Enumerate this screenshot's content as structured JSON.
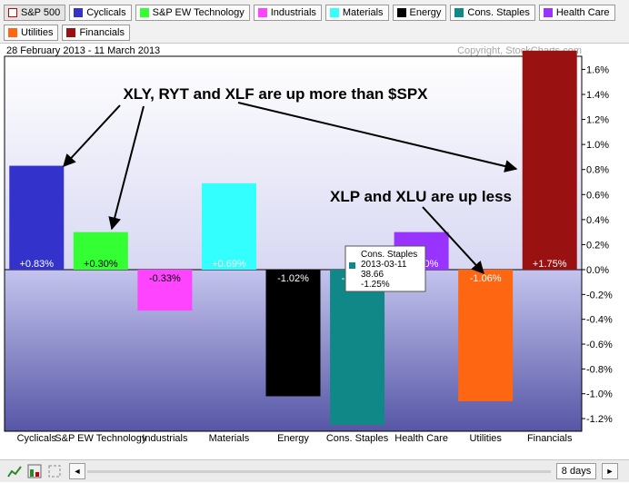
{
  "legend": [
    {
      "label": "S&P 500",
      "color": "#cc0000",
      "hollow": true
    },
    {
      "label": "Cyclicals",
      "color": "#3333cc"
    },
    {
      "label": "S&P EW Technology",
      "color": "#33ff33"
    },
    {
      "label": "Industrials",
      "color": "#ff44ff"
    },
    {
      "label": "Materials",
      "color": "#33ffff"
    },
    {
      "label": "Energy",
      "color": "#000000"
    },
    {
      "label": "Cons. Staples",
      "color": "#118888"
    },
    {
      "label": "Health Care",
      "color": "#9933ff"
    },
    {
      "label": "Utilities",
      "color": "#ff6611"
    },
    {
      "label": "Financials",
      "color": "#991111"
    }
  ],
  "header": {
    "date_range": "28 February 2013 - 11 March 2013",
    "copyright": "Copyright, StockCharts.com"
  },
  "chart_data": {
    "type": "bar",
    "categories": [
      "Cyclicals",
      "S&P EW Technology",
      "Industrials",
      "Materials",
      "Energy",
      "Cons. Staples",
      "Health Care",
      "Utilities",
      "Financials"
    ],
    "values": [
      0.83,
      0.3,
      -0.33,
      0.69,
      -1.02,
      -1.25,
      0.3,
      -1.06,
      1.75
    ],
    "value_labels": [
      "+0.83%",
      "+0.30%",
      "-0.33%",
      "+0.69%",
      "-1.02%",
      "-1.25%",
      "+0.30%",
      "-1.06%",
      "+1.75%"
    ],
    "colors": [
      "#3333cc",
      "#33ff33",
      "#ff44ff",
      "#33ffff",
      "#000000",
      "#118888",
      "#9933ff",
      "#ff6611",
      "#991111"
    ],
    "ylim": [
      -1.3,
      1.7
    ],
    "yticks": [
      -1.2,
      -1.0,
      -0.8,
      -0.6,
      -0.4,
      -0.2,
      0.0,
      0.2,
      0.4,
      0.6,
      0.8,
      1.0,
      1.2,
      1.4,
      1.6
    ],
    "ytick_labels": [
      "-1.2%",
      "-1.0%",
      "-0.8%",
      "-0.6%",
      "-0.4%",
      "-0.2%",
      "0.0%",
      "0.2%",
      "0.4%",
      "0.6%",
      "0.8%",
      "1.0%",
      "1.2%",
      "1.4%",
      "1.6%"
    ],
    "grid": false,
    "annotations": [
      {
        "text": "XLY, RYT and XLF are up more than $SPX"
      },
      {
        "text": "XLP and XLU are up less"
      }
    ],
    "tooltip": {
      "series": "Cons. Staples",
      "lines": [
        "Cons. Staples",
        "2013-03-11",
        "38.66",
        "-1.25%"
      ],
      "color": "#118888"
    }
  },
  "footer": {
    "days": "8 days",
    "left_arrow": "◄",
    "right_arrow": "►"
  }
}
